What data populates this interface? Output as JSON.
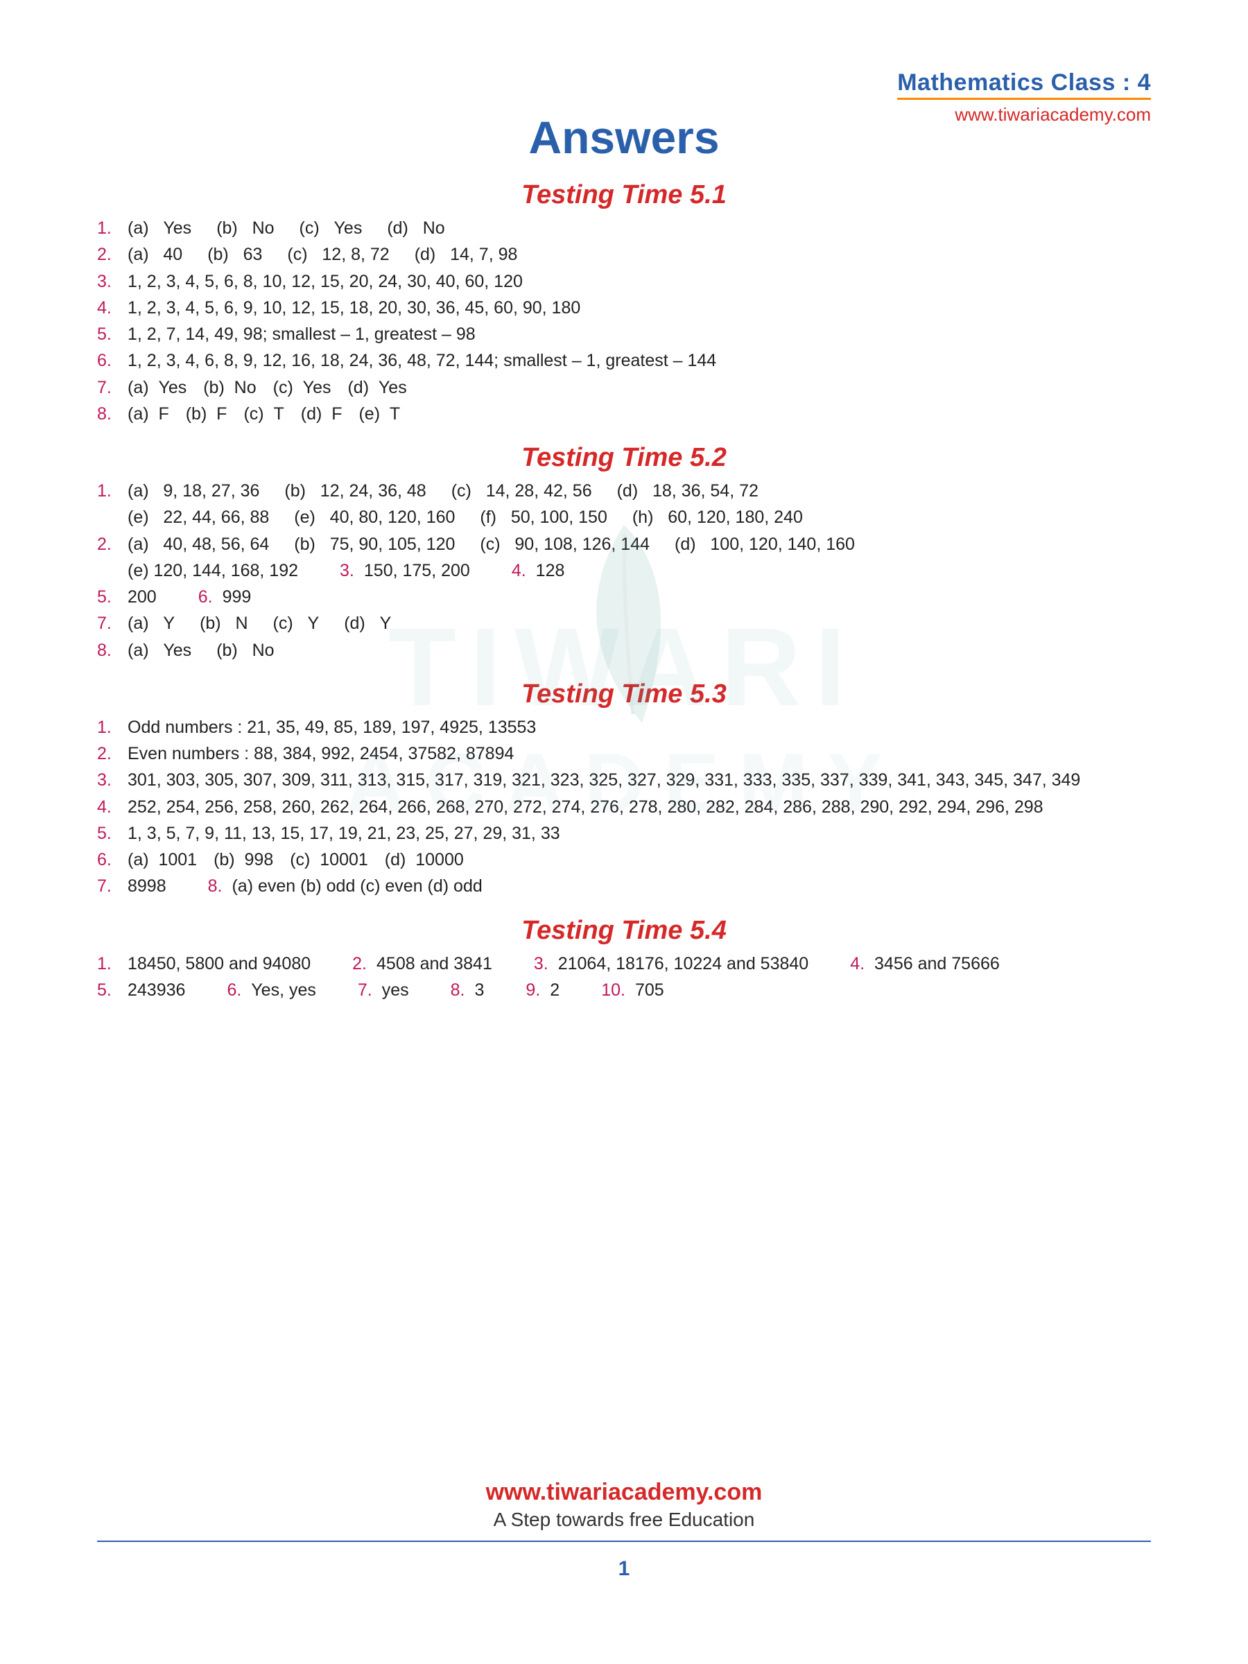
{
  "header": {
    "title": "Mathematics Class : 4",
    "url": "www.tiwariacademy.com"
  },
  "main_title": "Answers",
  "sections": [
    {
      "title": "Testing Time 5.1",
      "lines": [
        {
          "num": "1.",
          "parts": [
            [
              "(a)",
              "Yes"
            ],
            [
              "(b)",
              "No"
            ],
            [
              "(c)",
              "Yes"
            ],
            [
              "(d)",
              "No"
            ]
          ]
        },
        {
          "num": "2.",
          "parts": [
            [
              "(a)",
              "40"
            ],
            [
              "(b)",
              "63"
            ],
            [
              "(c)",
              "12, 8, 72"
            ],
            [
              "(d)",
              "14, 7, 98"
            ]
          ]
        },
        {
          "num": "3.",
          "text": "1, 2, 3, 4, 5, 6, 8, 10, 12, 15, 20, 24, 30, 40, 60, 120"
        },
        {
          "num": "4.",
          "text": "1, 2, 3, 4, 5, 6, 9, 10, 12, 15, 18, 20, 30, 36, 45, 60, 90, 180"
        },
        {
          "num": "5.",
          "text": "1, 2, 7, 14, 49, 98; smallest – 1, greatest – 98"
        },
        {
          "num": "6.",
          "text": "1, 2, 3, 4, 6, 8, 9, 12, 16, 18, 24, 36, 48, 72, 144; smallest – 1, greatest – 144"
        },
        {
          "num": "7.",
          "parts_tight": [
            [
              "(a)",
              "Yes"
            ],
            [
              "(b)",
              "No"
            ],
            [
              "(c)",
              "Yes"
            ],
            [
              "(d)",
              "Yes"
            ]
          ]
        },
        {
          "num": "8.",
          "parts_tight": [
            [
              "(a)",
              "F"
            ],
            [
              "(b)",
              "F"
            ],
            [
              "(c)",
              "T"
            ],
            [
              "(d)",
              "F"
            ],
            [
              "(e)",
              "T"
            ]
          ]
        }
      ]
    },
    {
      "title": "Testing Time 5.2",
      "lines": [
        {
          "num": "1.",
          "parts": [
            [
              "(a)",
              "9, 18, 27, 36"
            ],
            [
              "(b)",
              "12, 24, 36, 48"
            ],
            [
              "(c)",
              "14, 28, 42, 56"
            ],
            [
              "(d)",
              "18, 36, 54, 72"
            ]
          ]
        },
        {
          "num": "",
          "parts": [
            [
              "(e)",
              "22, 44, 66, 88"
            ],
            [
              "(e)",
              "40, 80, 120, 160"
            ],
            [
              "(f)",
              "50, 100, 150"
            ],
            [
              "(h)",
              "60, 120, 180, 240"
            ]
          ]
        },
        {
          "num": "2.",
          "parts": [
            [
              "(a)",
              "40, 48, 56, 64"
            ],
            [
              "(b)",
              "75, 90, 105, 120"
            ],
            [
              "(c)",
              "90, 108, 126, 144"
            ],
            [
              "(d)",
              "100, 120, 140, 160"
            ]
          ]
        },
        {
          "num": "",
          "mixed": [
            [
              "",
              "(e)   120, 144, 168, 192"
            ],
            [
              "3.",
              "150, 175, 200"
            ],
            [
              "4.",
              "128"
            ]
          ]
        },
        {
          "num": "5.",
          "mixed": [
            [
              "",
              "200"
            ],
            [
              "6.",
              "999"
            ]
          ]
        },
        {
          "num": "7.",
          "parts": [
            [
              "(a)",
              "Y"
            ],
            [
              "(b)",
              "N"
            ],
            [
              "(c)",
              "Y"
            ],
            [
              "(d)",
              "Y"
            ]
          ]
        },
        {
          "num": "8.",
          "parts": [
            [
              "(a)",
              "Yes"
            ],
            [
              "(b)",
              "No"
            ]
          ]
        }
      ]
    },
    {
      "title": "Testing Time 5.3",
      "lines": [
        {
          "num": "1.",
          "text": "Odd numbers :  21, 35, 49, 85, 189, 197, 4925, 13553"
        },
        {
          "num": "2.",
          "text": "Even numbers : 88, 384, 992, 2454, 37582, 87894"
        },
        {
          "num": "3.",
          "text": "301, 303, 305, 307, 309, 311, 313, 315, 317, 319, 321, 323, 325, 327, 329, 331, 333, 335, 337, 339, 341, 343, 345, 347, 349"
        },
        {
          "num": "4.",
          "text": "252, 254, 256, 258, 260, 262, 264, 266, 268, 270, 272, 274, 276, 278, 280, 282, 284, 286, 288, 290, 292, 294, 296, 298"
        },
        {
          "num": "5.",
          "text": "1, 3, 5, 7, 9, 11, 13, 15, 17, 19, 21, 23, 25, 27, 29, 31, 33"
        },
        {
          "num": "6.",
          "parts_tight": [
            [
              "(a)",
              "1001"
            ],
            [
              "(b)",
              "998"
            ],
            [
              "(c)",
              "10001"
            ],
            [
              "(d)",
              "10000"
            ]
          ]
        },
        {
          "num": "7.",
          "mixed": [
            [
              "",
              "8998"
            ],
            [
              "8.",
              "(a)   even          (b)   odd          (c)   even          (d)   odd"
            ]
          ]
        }
      ]
    },
    {
      "title": "Testing Time 5.4",
      "lines": [
        {
          "num": "1.",
          "mixed": [
            [
              "",
              "18450, 5800 and 94080"
            ],
            [
              "2.",
              "4508 and 3841"
            ],
            [
              "3.",
              "21064, 18176, 10224 and 53840"
            ],
            [
              "4.",
              "3456 and 75666"
            ]
          ]
        },
        {
          "num": "5.",
          "mixed": [
            [
              "",
              "243936"
            ],
            [
              "6.",
              "Yes, yes"
            ],
            [
              "7.",
              "yes"
            ],
            [
              "8.",
              "3"
            ],
            [
              "9.",
              "2"
            ],
            [
              "10.",
              "705"
            ]
          ]
        }
      ]
    }
  ],
  "watermark1": "TIWARI",
  "watermark2": "ACADEMY",
  "footer": {
    "url": "www.tiwariacademy.com",
    "tagline": "A Step towards free Education",
    "page": "1"
  },
  "colors": {
    "blue": "#2a5fab",
    "red": "#d62828",
    "orange": "#ff8800",
    "magenta": "#c2185b",
    "text": "#222222"
  }
}
